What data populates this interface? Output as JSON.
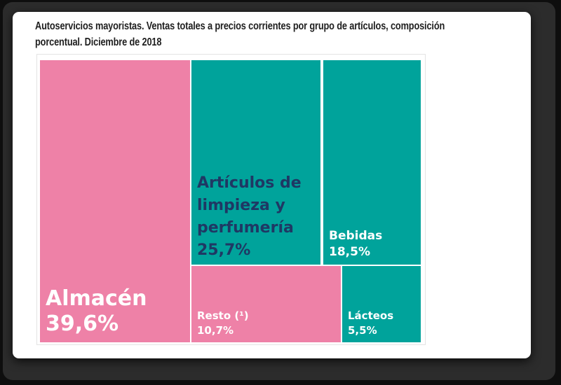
{
  "header": {
    "title_line1": "Autoservicios mayoristas. Ventas totales a precios corrientes por grupo de artículos, composición",
    "title_line2": "porcentual. Diciembre de 2018"
  },
  "colors": {
    "pink": "#ee81a7",
    "teal": "#00a39b",
    "navy_text": "#1f3864",
    "white_text": "#ffffff",
    "title_text": "#1f1f1f",
    "chart_border": "#e3e3e3"
  },
  "treemap": {
    "cells": [
      {
        "id": "almacen",
        "label": "Almacén",
        "value_label": "39,6%",
        "fill": "pink",
        "text": "white_text"
      },
      {
        "id": "articulos",
        "label": "Artículos de limpieza y perfumería",
        "value_label": "25,7%",
        "fill": "teal",
        "text": "navy_text"
      },
      {
        "id": "bebidas",
        "label": "Bebidas",
        "value_label": "18,5%",
        "fill": "teal",
        "text": "white_text"
      },
      {
        "id": "resto",
        "label": "Resto (¹)",
        "value_label": "10,7%",
        "fill": "pink",
        "text": "white_text"
      },
      {
        "id": "lacteos",
        "label": "Lácteos",
        "value_label": "5,5%",
        "fill": "teal",
        "text": "white_text"
      }
    ]
  },
  "chart_data": {
    "type": "treemap",
    "title": "Autoservicios mayoristas. Ventas totales a precios corrientes por grupo de artículos, composición porcentual. Diciembre de 2018",
    "categories": [
      "Almacén",
      "Artículos de limpieza y perfumería",
      "Bebidas",
      "Resto (¹)",
      "Lácteos"
    ],
    "values": [
      39.6,
      25.7,
      18.5,
      10.7,
      5.5
    ],
    "unit": "%",
    "value_labels": [
      "39,6%",
      "25,7%",
      "18,5%",
      "10,7%",
      "5,5%"
    ],
    "cell_colors": [
      "#ee81a7",
      "#00a39b",
      "#00a39b",
      "#ee81a7",
      "#00a39b"
    ],
    "legend": "none",
    "notes": "Decimal comma formatting; Resto marked with footnote (¹)"
  }
}
